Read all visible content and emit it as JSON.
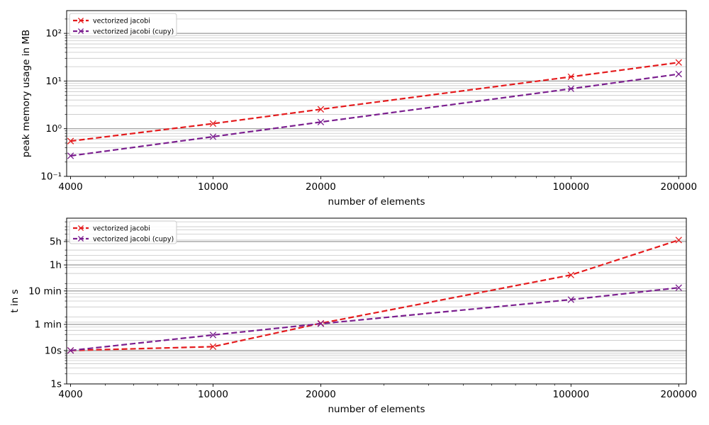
{
  "colors": {
    "series_red": "#e41a1c",
    "series_purple": "#7b1f8f",
    "grid": "#999999",
    "axes": "#000000"
  },
  "chart_data": [
    {
      "type": "line",
      "xscale": "log",
      "yscale": "log",
      "xlabel": "number of elements",
      "ylabel": "peak memory usage in MB",
      "xlim": [
        3900,
        210000
      ],
      "ylim": [
        0.1,
        300
      ],
      "xticks": [
        4000,
        10000,
        20000,
        100000,
        200000
      ],
      "xtick_labels": [
        "4000",
        "10000",
        "20000",
        "100000",
        "200000"
      ],
      "yticks": [
        0.1,
        1,
        10,
        100
      ],
      "ytick_labels": [
        "10⁻¹",
        "10⁰",
        "10¹",
        "10²"
      ],
      "grid": "major and minor (y)",
      "legend_position": "top-left",
      "x": [
        4000,
        10000,
        20000,
        100000,
        200000
      ],
      "series": [
        {
          "name": "vectorized jacobi",
          "color": "#e41a1c",
          "marker": "x",
          "linestyle": "dashed",
          "values": [
            0.55,
            1.28,
            2.55,
            12.3,
            24.5
          ]
        },
        {
          "name": "vectorized jacobi (cupy)",
          "color": "#7b1f8f",
          "marker": "x",
          "linestyle": "dashed",
          "values": [
            0.27,
            0.68,
            1.38,
            6.9,
            14.0
          ]
        }
      ]
    },
    {
      "type": "line",
      "xscale": "log",
      "yscale": "log",
      "xlabel": "number of elements",
      "ylabel": "t in s",
      "xlim": [
        3900,
        210000
      ],
      "ylim": [
        1,
        90000
      ],
      "xticks": [
        4000,
        10000,
        20000,
        100000,
        200000
      ],
      "xtick_labels": [
        "4000",
        "10000",
        "20000",
        "100000",
        "200000"
      ],
      "yticks": [
        1,
        10,
        60,
        600,
        3600,
        18000
      ],
      "ytick_labels": [
        "1s",
        "10s",
        "1 min",
        "10 min",
        "1h",
        "5h"
      ],
      "grid": "major and minor (y)",
      "legend_position": "top-left",
      "x": [
        4000,
        10000,
        20000,
        100000,
        200000
      ],
      "series": [
        {
          "name": "vectorized jacobi",
          "color": "#e41a1c",
          "marker": "x",
          "linestyle": "dashed",
          "values": [
            10,
            13,
            65,
            1800,
            20000
          ]
        },
        {
          "name": "vectorized jacobi (cupy)",
          "color": "#7b1f8f",
          "marker": "x",
          "linestyle": "dashed",
          "values": [
            10,
            29,
            63,
            330,
            750
          ]
        }
      ]
    }
  ]
}
